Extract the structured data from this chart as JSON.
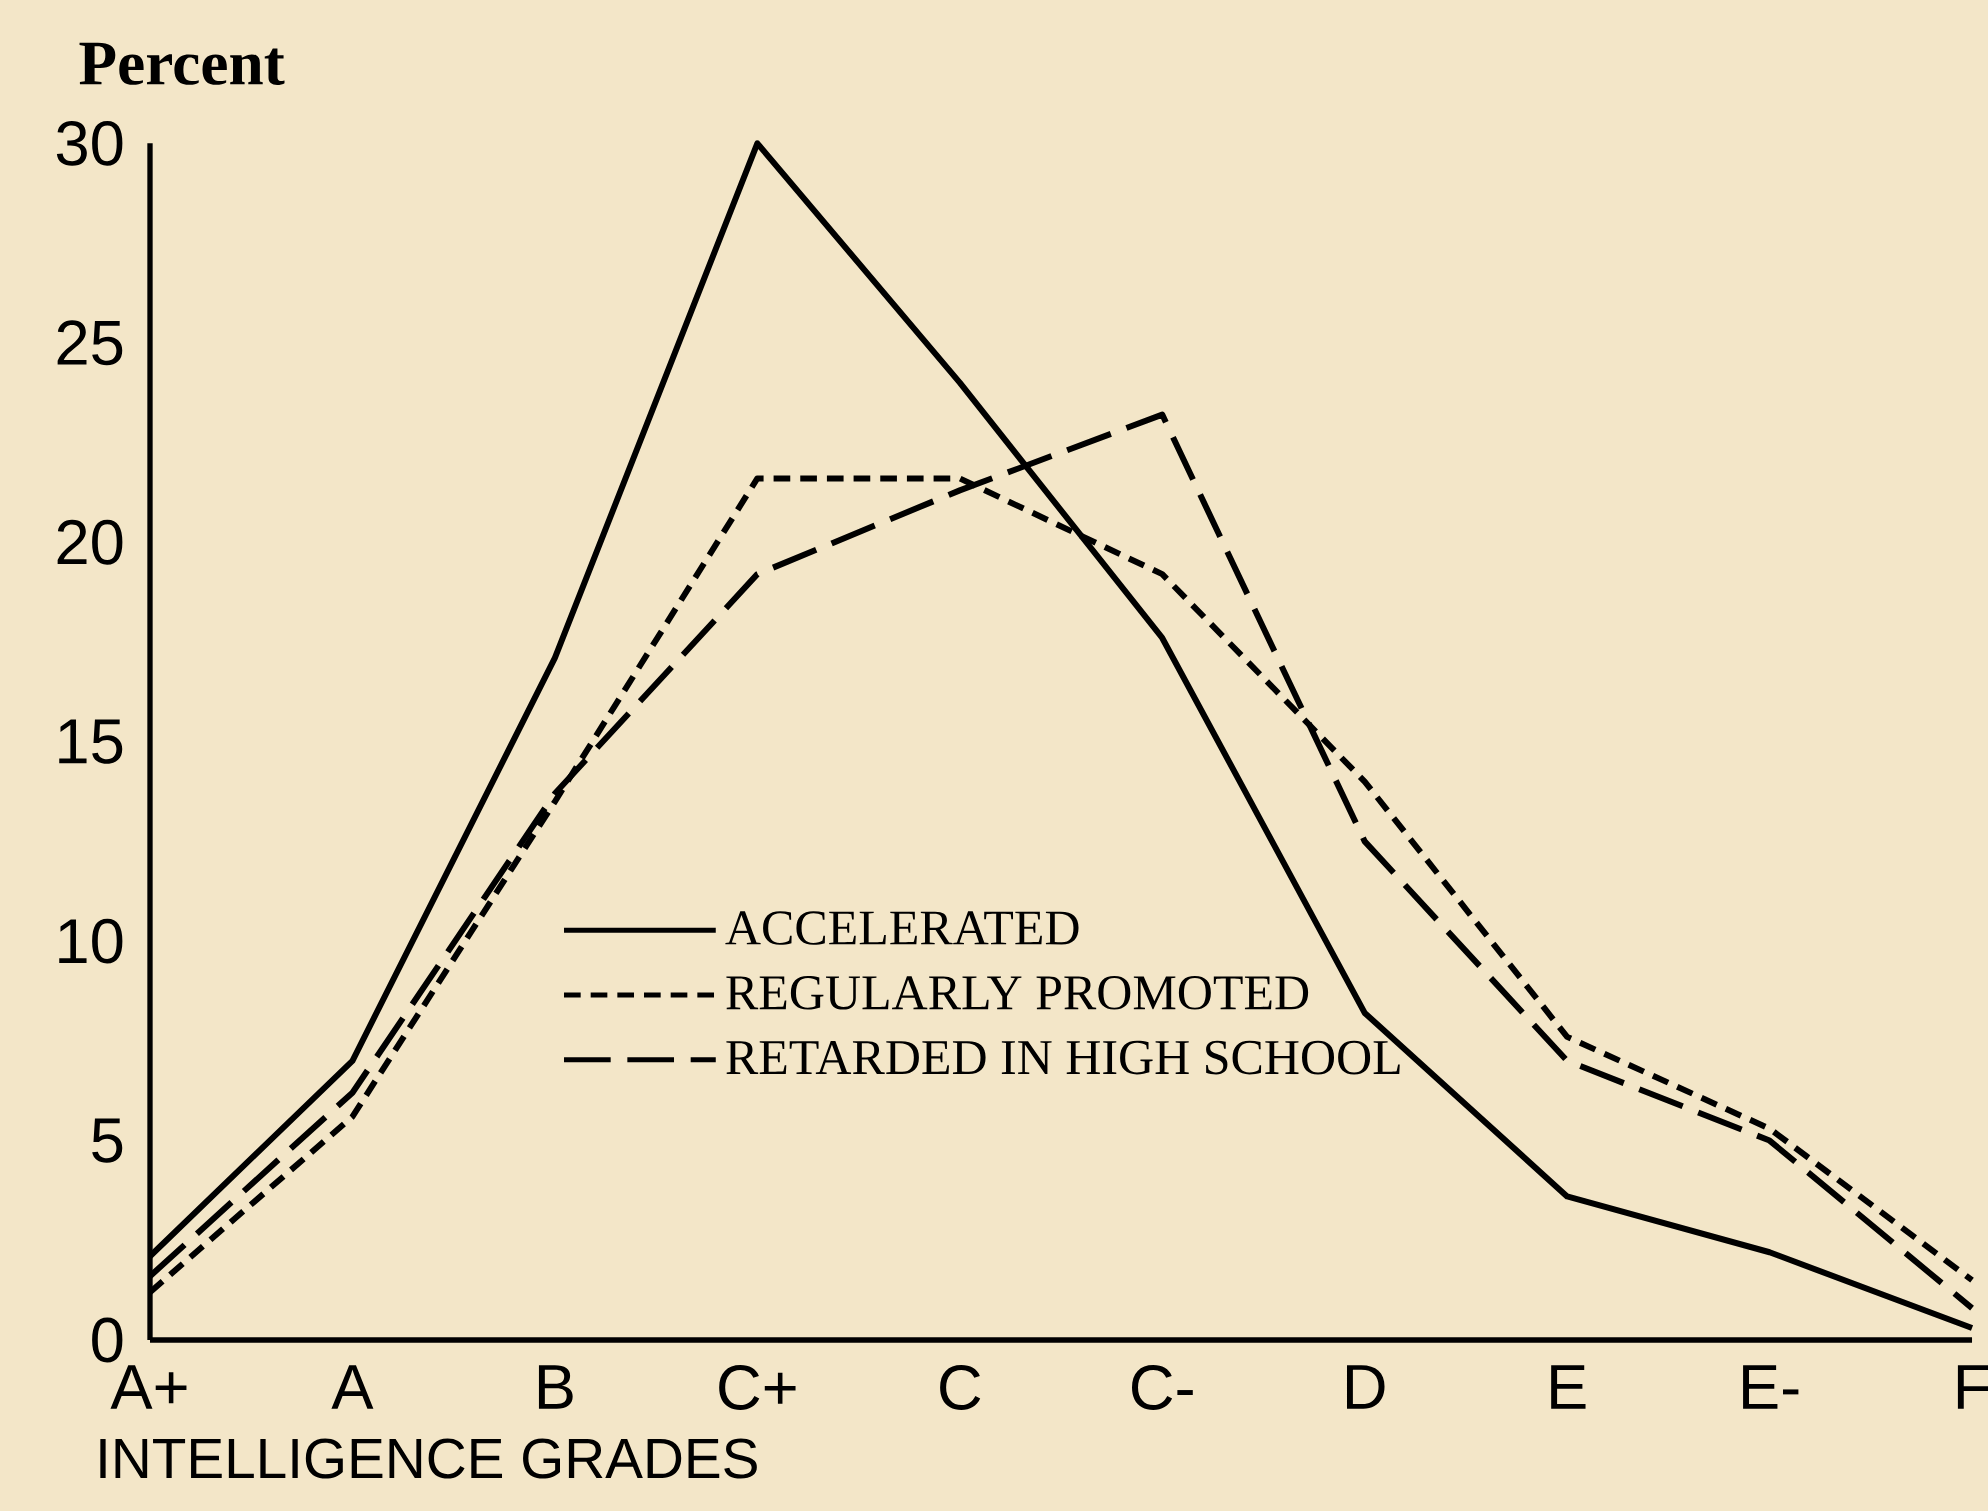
{
  "chart_data": {
    "type": "line",
    "ylabel": "Percent",
    "xlabel": "INTELLIGENCE GRADES",
    "categories": [
      "A+",
      "A",
      "B",
      "C+",
      "C",
      "C-",
      "D",
      "E",
      "E-",
      "F"
    ],
    "series": [
      {
        "name": "ACCELERATED",
        "color": "#000000",
        "line_style": "solid",
        "values": [
          2.1,
          7.0,
          17.1,
          30,
          24,
          17.6,
          8.2,
          3.6,
          2.2,
          0.3
        ]
      },
      {
        "name": "REGULARLY PROMOTED",
        "color": "#000000",
        "line_style": "dotted",
        "values": [
          1.2,
          5.6,
          13.5,
          21.6,
          21.6,
          19.2,
          14,
          7.6,
          5.3,
          1.5
        ]
      },
      {
        "name": "RETARDED IN HIGH SCHOOL",
        "color": "#000000",
        "line_style": "dashed",
        "values": [
          1.6,
          6.2,
          13.7,
          19.2,
          21.3,
          23.2,
          12.5,
          7.0,
          5.0,
          0.8
        ]
      }
    ],
    "ylim": [
      0,
      30
    ],
    "yticks": [
      0,
      5,
      10,
      15,
      20,
      25,
      30
    ],
    "legend": "center",
    "grid": false
  }
}
